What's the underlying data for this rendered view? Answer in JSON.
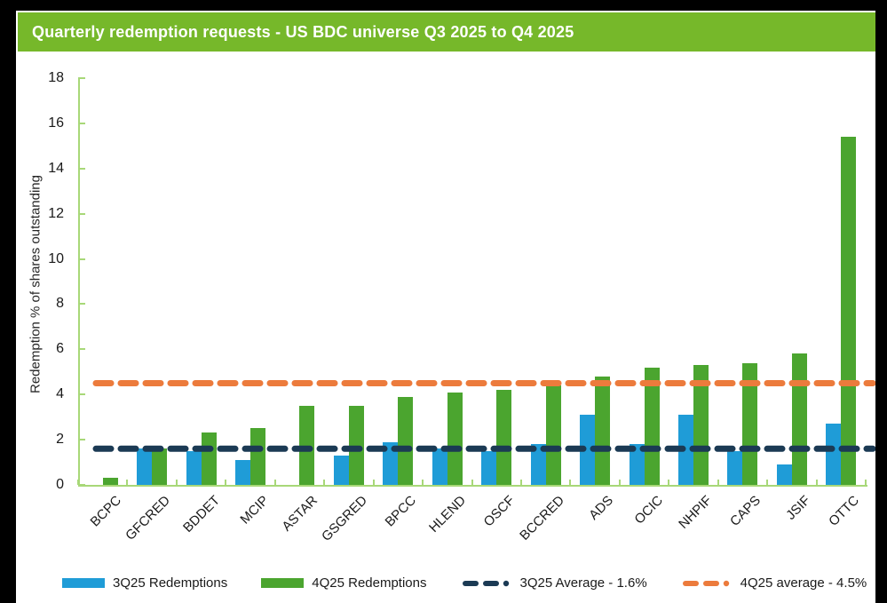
{
  "header": {
    "title": "Quarterly redemption requests - US BDC universe Q3 2025 to Q4 2025",
    "background_color": "#76b82a",
    "text_color": "#ffffff"
  },
  "chart_data": {
    "type": "bar",
    "title": "Quarterly redemption requests - US BDC universe Q3 2025 to Q4 2025",
    "xlabel": "",
    "ylabel": "Redemption % of shares outstanding",
    "ylim": [
      0,
      18
    ],
    "ytick_step": 2,
    "grid": false,
    "legend_position": "bottom",
    "axis_color": "#a8d878",
    "categories": [
      "BCPC",
      "GFCRED",
      "BDDET",
      "MCIP",
      "ASTAR",
      "GSGRED",
      "BPCC",
      "HLEND",
      "OSCF",
      "BCCRED",
      "ADS",
      "OCIC",
      "NHPIF",
      "CAPS",
      "JSIF",
      "OTTC"
    ],
    "series": [
      {
        "name": "3Q25 Redemptions",
        "color": "#1f9cd7",
        "values": [
          0,
          1.6,
          1.5,
          1.1,
          0,
          1.3,
          1.9,
          1.6,
          1.5,
          1.8,
          3.1,
          1.8,
          3.1,
          1.5,
          0.9,
          2.7
        ]
      },
      {
        "name": "4Q25 Redemptions",
        "color": "#4ba52f",
        "values": [
          0.3,
          1.6,
          2.3,
          2.5,
          3.5,
          3.5,
          3.9,
          4.1,
          4.2,
          4.4,
          4.8,
          5.2,
          5.3,
          5.4,
          5.8,
          15.4
        ]
      }
    ],
    "average_lines": [
      {
        "name": "3Q25 Average - 1.6%",
        "value": 1.6,
        "color": "#1b3a54",
        "style": "dashed-round"
      },
      {
        "name": "4Q25 average - 4.5%",
        "value": 4.5,
        "color": "#ec7b3c",
        "style": "dashed-round"
      }
    ]
  },
  "legend": {
    "items": [
      {
        "label": "3Q25 Redemptions",
        "swatch": "rect",
        "color": "#1f9cd7"
      },
      {
        "label": "4Q25 Redemptions",
        "swatch": "rect",
        "color": "#4ba52f"
      },
      {
        "label": "3Q25 Average - 1.6%",
        "swatch": "dashed-line",
        "color": "#1b3a54"
      },
      {
        "label": "4Q25 average - 4.5%",
        "swatch": "dashed-line",
        "color": "#ec7b3c"
      }
    ]
  }
}
